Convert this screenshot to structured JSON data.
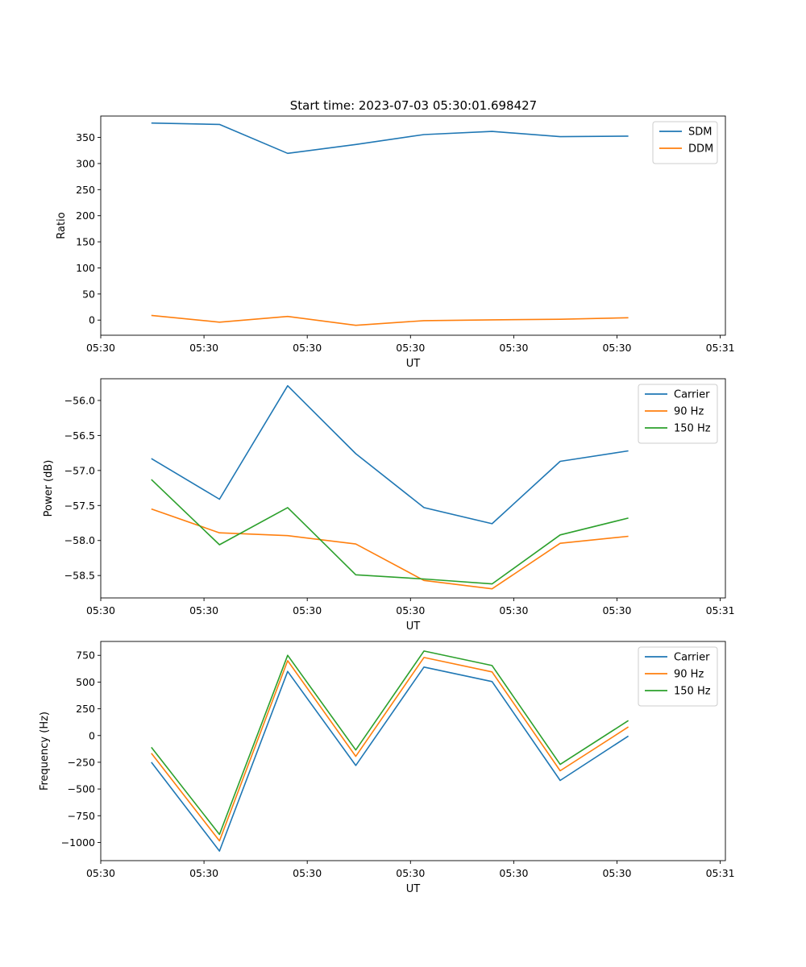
{
  "figure": {
    "title": "Start time: 2023-07-03 05:30:01.698427"
  },
  "colors": {
    "blue": "#1f77b4",
    "orange": "#ff7f0e",
    "green": "#2ca02c"
  },
  "chart_data": [
    {
      "type": "line",
      "xlabel": "UT",
      "ylabel": "Ratio",
      "xlim": [
        0,
        6.05
      ],
      "ylim": [
        -29,
        391
      ],
      "yticks": [
        0,
        50,
        100,
        150,
        200,
        250,
        300,
        350
      ],
      "xticks": [
        {
          "v": 0,
          "label": "05:30"
        },
        {
          "v": 1,
          "label": "05:30"
        },
        {
          "v": 2,
          "label": "05:30"
        },
        {
          "v": 3,
          "label": "05:30"
        },
        {
          "v": 4,
          "label": "05:30"
        },
        {
          "v": 5,
          "label": "05:30"
        },
        {
          "v": 6,
          "label": "05:31"
        }
      ],
      "x": [
        0.49,
        1.15,
        1.81,
        2.47,
        3.13,
        3.79,
        4.45,
        5.11
      ],
      "series": [
        {
          "name": "SDM",
          "color": "#1f77b4",
          "values": [
            377.5,
            375,
            319.5,
            336.5,
            355.5,
            361.5,
            351.5,
            352.5
          ]
        },
        {
          "name": "DDM",
          "color": "#ff7f0e",
          "values": [
            9,
            -4,
            7,
            -10,
            -1,
            0.5,
            1.5,
            4.5
          ]
        }
      ],
      "legend": "top-right"
    },
    {
      "type": "line",
      "xlabel": "UT",
      "ylabel": "Power (dB)",
      "xlim": [
        0,
        6.05
      ],
      "ylim": [
        -58.82,
        -55.69
      ],
      "yticks": [
        -58.5,
        -58.0,
        -57.5,
        -57.0,
        -56.5,
        -56.0
      ],
      "ytick_labels": [
        "−58.5",
        "−58.0",
        "−57.5",
        "−57.0",
        "−56.5",
        "−56.0"
      ],
      "xticks": [
        {
          "v": 0,
          "label": "05:30"
        },
        {
          "v": 1,
          "label": "05:30"
        },
        {
          "v": 2,
          "label": "05:30"
        },
        {
          "v": 3,
          "label": "05:30"
        },
        {
          "v": 4,
          "label": "05:30"
        },
        {
          "v": 5,
          "label": "05:30"
        },
        {
          "v": 6,
          "label": "05:31"
        }
      ],
      "x": [
        0.49,
        1.15,
        1.81,
        2.47,
        3.13,
        3.79,
        4.45,
        5.11
      ],
      "series": [
        {
          "name": "Carrier",
          "color": "#1f77b4",
          "values": [
            -56.83,
            -57.41,
            -55.79,
            -56.76,
            -57.53,
            -57.76,
            -56.87,
            -56.72
          ]
        },
        {
          "name": "90 Hz",
          "color": "#ff7f0e",
          "values": [
            -57.55,
            -57.89,
            -57.93,
            -58.05,
            -58.57,
            -58.69,
            -58.04,
            -57.94
          ]
        },
        {
          "name": "150 Hz",
          "color": "#2ca02c",
          "values": [
            -57.13,
            -58.06,
            -57.53,
            -58.49,
            -58.55,
            -58.62,
            -57.92,
            -57.68
          ]
        }
      ],
      "legend": "top-right"
    },
    {
      "type": "line",
      "xlabel": "UT",
      "ylabel": "Frequency (Hz)",
      "xlim": [
        0,
        6.05
      ],
      "ylim": [
        -1170,
        880
      ],
      "yticks": [
        -1000,
        -750,
        -500,
        -250,
        0,
        250,
        500,
        750
      ],
      "ytick_labels": [
        "−1000",
        "−750",
        "−500",
        "−250",
        "0",
        "250",
        "500",
        "750"
      ],
      "xticks": [
        {
          "v": 0,
          "label": "05:30"
        },
        {
          "v": 1,
          "label": "05:30"
        },
        {
          "v": 2,
          "label": "05:30"
        },
        {
          "v": 3,
          "label": "05:30"
        },
        {
          "v": 4,
          "label": "05:30"
        },
        {
          "v": 5,
          "label": "05:30"
        },
        {
          "v": 6,
          "label": "05:31"
        }
      ],
      "x": [
        0.49,
        1.15,
        1.81,
        2.47,
        3.13,
        3.79,
        4.45,
        5.11
      ],
      "series": [
        {
          "name": "Carrier",
          "color": "#1f77b4",
          "values": [
            -250,
            -1080,
            600,
            -280,
            640,
            505,
            -420,
            -5
          ]
        },
        {
          "name": "90 Hz",
          "color": "#ff7f0e",
          "values": [
            -165,
            -985,
            700,
            -195,
            730,
            595,
            -330,
            80
          ]
        },
        {
          "name": "150 Hz",
          "color": "#2ca02c",
          "values": [
            -110,
            -925,
            750,
            -135,
            790,
            655,
            -270,
            140
          ]
        }
      ],
      "legend": "top-right"
    }
  ]
}
